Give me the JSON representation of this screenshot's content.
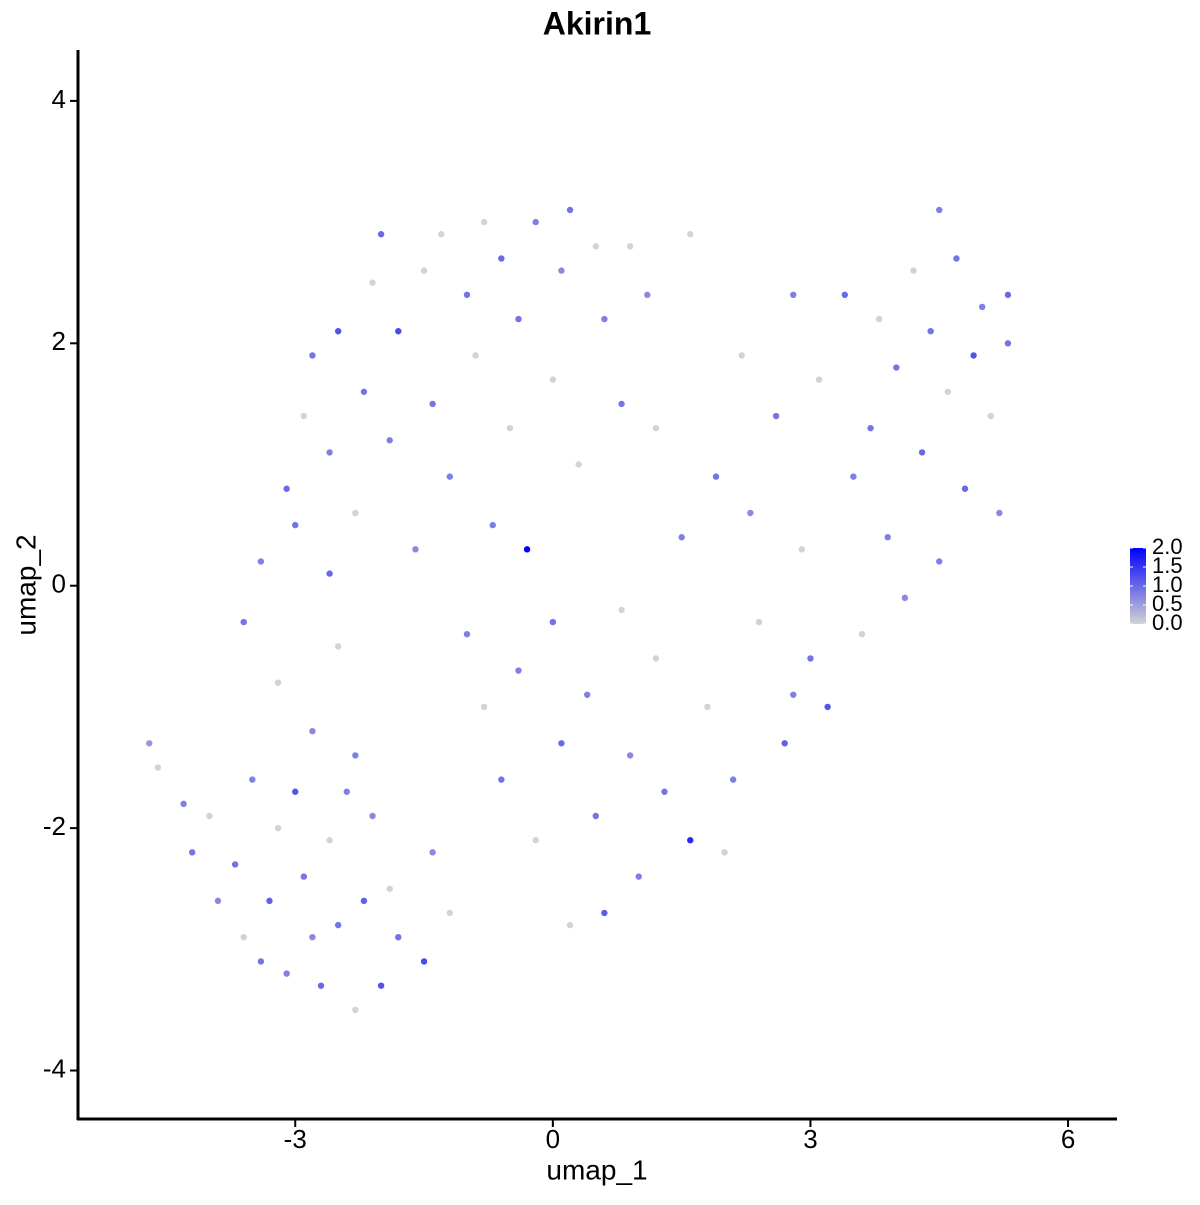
{
  "chart_data": {
    "type": "scatter",
    "title": "Akirin1",
    "xlabel": "umap_1",
    "ylabel": "umap_2",
    "xlim": [
      -5.53,
      6.57
    ],
    "ylim": [
      -4.4,
      4.42
    ],
    "xticks": [
      -3,
      0,
      3,
      6
    ],
    "yticks": [
      -4,
      -2,
      0,
      2,
      4
    ],
    "x": [
      -4.7,
      -4.6,
      -4.3,
      -4.2,
      -4.0,
      -3.9,
      -3.7,
      -3.6,
      -3.5,
      -3.4,
      -3.3,
      -3.2,
      -3.1,
      -3.0,
      -2.9,
      -2.8,
      -2.7,
      -2.6,
      -2.5,
      -2.4,
      -2.3,
      -2.2,
      -2.1,
      -2.0,
      -1.9,
      -1.8,
      -1.5,
      -1.4,
      -1.2,
      -3.6,
      -3.4,
      -3.2,
      -3.0,
      -2.8,
      -2.6,
      -2.5,
      -2.3,
      -3.1,
      -2.9,
      -2.8,
      -2.6,
      -2.5,
      -2.3,
      -2.2,
      -2.1,
      -2.0,
      -1.9,
      -1.8,
      -1.6,
      -1.5,
      -1.4,
      -1.3,
      -1.2,
      -1.0,
      -0.9,
      -0.8,
      -0.7,
      -0.6,
      -0.5,
      -0.4,
      -0.3,
      -0.2,
      0.0,
      0.1,
      0.2,
      0.3,
      0.5,
      0.6,
      0.8,
      0.9,
      1.1,
      1.2,
      1.6,
      -1.0,
      -0.8,
      -0.6,
      -0.4,
      -0.2,
      0.0,
      0.1,
      0.2,
      0.4,
      0.5,
      0.6,
      0.8,
      0.9,
      1.0,
      1.2,
      1.3,
      1.5,
      1.6,
      1.8,
      1.9,
      2.1,
      2.2,
      2.3,
      2.4,
      2.6,
      2.7,
      2.8,
      2.9,
      3.0,
      3.1,
      3.2,
      3.4,
      3.5,
      3.6,
      3.7,
      3.8,
      3.9,
      4.0,
      4.1,
      4.2,
      4.3,
      4.4,
      4.5,
      4.5,
      4.6,
      4.7,
      4.8,
      4.9,
      5.0,
      5.1,
      5.2,
      5.3,
      5.3,
      2.8,
      2.0
    ],
    "y": [
      -1.3,
      -1.5,
      -1.8,
      -2.2,
      -1.9,
      -2.6,
      -2.3,
      -2.9,
      -1.6,
      -3.1,
      -2.6,
      -2.0,
      -3.2,
      -1.7,
      -2.4,
      -2.9,
      -3.3,
      -2.1,
      -2.8,
      -1.7,
      -3.5,
      -2.6,
      -1.9,
      -3.3,
      -2.5,
      -2.9,
      -3.1,
      -2.2,
      -2.7,
      -0.3,
      0.2,
      -0.8,
      0.5,
      -1.2,
      0.1,
      -0.5,
      -1.4,
      0.8,
      1.4,
      1.9,
      1.1,
      2.1,
      0.6,
      1.6,
      2.5,
      2.9,
      1.2,
      2.1,
      0.3,
      2.6,
      1.5,
      2.9,
      0.9,
      2.4,
      1.9,
      3.0,
      0.5,
      2.7,
      1.3,
      2.2,
      0.3,
      3.0,
      1.7,
      2.6,
      3.1,
      1.0,
      2.8,
      2.2,
      1.5,
      2.8,
      2.4,
      1.3,
      2.9,
      -0.4,
      -1.0,
      -1.6,
      -0.7,
      -2.1,
      -0.3,
      -1.3,
      -2.8,
      -0.9,
      -1.9,
      -2.7,
      -0.2,
      -1.4,
      -2.4,
      -0.6,
      -1.7,
      0.4,
      -2.1,
      -1.0,
      0.9,
      -1.6,
      1.9,
      0.6,
      -0.3,
      1.4,
      -1.3,
      2.4,
      0.3,
      -0.6,
      1.7,
      -1.0,
      2.4,
      0.9,
      -0.4,
      1.3,
      2.2,
      0.4,
      1.8,
      -0.1,
      2.6,
      1.1,
      2.1,
      3.1,
      0.2,
      1.6,
      2.7,
      0.8,
      1.9,
      2.3,
      1.4,
      0.6,
      2.0,
      2.4,
      -0.9,
      -2.2
    ],
    "values": [
      0.6,
      0,
      0.8,
      0.9,
      0,
      0.7,
      0.9,
      0,
      0.8,
      0.9,
      1.1,
      0,
      0.8,
      1.2,
      0.9,
      0.7,
      1.0,
      0,
      0.9,
      0.8,
      0,
      1.1,
      0.7,
      1.2,
      0,
      0.9,
      1.3,
      0.7,
      0,
      0.9,
      0.8,
      0,
      0.9,
      0.7,
      1.0,
      0,
      0.8,
      1.0,
      0,
      0.9,
      0.8,
      1.2,
      0,
      0.9,
      0,
      1.0,
      0.8,
      1.3,
      0.7,
      0,
      0.9,
      0,
      0.8,
      0.9,
      0,
      0,
      0.8,
      1.0,
      0,
      0.9,
      2.0,
      0.8,
      0,
      0.7,
      0.9,
      0,
      0,
      0.8,
      0.9,
      0,
      0.7,
      0,
      0,
      0.8,
      0,
      0.9,
      0.8,
      0,
      0.9,
      1.0,
      0,
      0.8,
      0.9,
      1.1,
      0,
      0.7,
      0.8,
      0,
      0.9,
      0.8,
      1.6,
      0,
      0.9,
      0.8,
      0,
      0.7,
      0,
      0.9,
      1.1,
      0.8,
      0,
      0.9,
      0,
      1.2,
      1.0,
      0.8,
      0,
      0.9,
      0,
      0.8,
      0.9,
      0.7,
      0,
      1.0,
      0.9,
      0.8,
      0.8,
      0,
      0.9,
      1.0,
      1.2,
      0.8,
      0,
      0.7,
      0.9,
      1.0,
      0.8,
      0
    ],
    "colorbar": {
      "lim": [
        0,
        2
      ],
      "colors": [
        "#d3d3d3",
        "#0000ff"
      ],
      "ticks": [
        {
          "value": 0,
          "label": "0.0"
        },
        {
          "value": 0.5,
          "label": "0.5"
        },
        {
          "value": 1,
          "label": "1.0"
        },
        {
          "value": 1.5,
          "label": "1.5"
        },
        {
          "value": 2,
          "label": "2.0"
        }
      ]
    }
  }
}
